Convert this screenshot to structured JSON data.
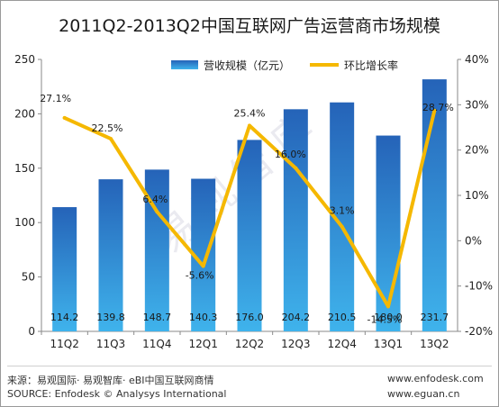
{
  "title": "2011Q2-2013Q2中国互联网广告运营商市场规模",
  "watermark": "易观智库",
  "colors": {
    "bar_top": "#2563b8",
    "bar_bottom": "#3fb3ec",
    "line": "#f5b800",
    "axis": "#8a8a8a"
  },
  "chart_data": {
    "type": "bar+line",
    "categories": [
      "11Q2",
      "11Q3",
      "11Q4",
      "12Q1",
      "12Q2",
      "12Q3",
      "12Q4",
      "13Q1",
      "13Q2"
    ],
    "series": [
      {
        "name": "营收规模（亿元）",
        "type": "bar",
        "axis": "left",
        "values": [
          114.2,
          139.8,
          148.7,
          140.3,
          176.0,
          204.2,
          210.5,
          180.0,
          231.7
        ],
        "labels": [
          "114.2",
          "139.8",
          "148.7",
          "140.3",
          "176.0",
          "204.2",
          "210.5",
          "180.0",
          "231.7"
        ]
      },
      {
        "name": "环比增长率",
        "type": "line",
        "axis": "right",
        "values": [
          27.1,
          22.5,
          6.4,
          -5.6,
          25.4,
          16.0,
          3.1,
          -14.5,
          28.7
        ],
        "labels": [
          "27.1%",
          "22.5%",
          "6.4%",
          "-5.6%",
          "25.4%",
          "16.0%",
          "3.1%",
          "-14.5%",
          "28.7%"
        ]
      }
    ],
    "y_left": {
      "min": 0,
      "max": 250,
      "ticks": [
        "0",
        "50",
        "100",
        "150",
        "200",
        "250"
      ]
    },
    "y_right": {
      "min": -20,
      "max": 40,
      "ticks": [
        "-20%",
        "-10%",
        "0%",
        "10%",
        "20%",
        "30%",
        "40%"
      ]
    },
    "legend": {
      "placement": "top-right"
    },
    "grid": false
  },
  "footer": {
    "source_cn": "来源：易观国际· 易观智库· eBI中国互联网商情",
    "source_en": "SOURCE: Enfodesk © Analysys International",
    "url_1": "www.enfodesk.com",
    "url_2": "www.eguan.cn"
  }
}
